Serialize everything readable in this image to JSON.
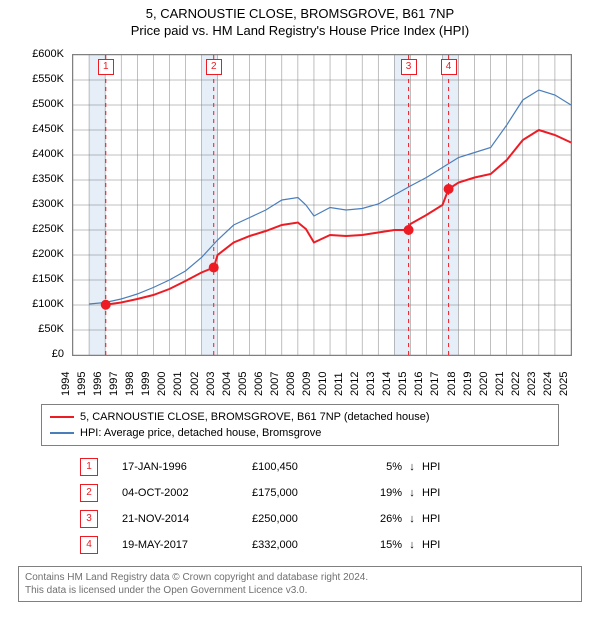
{
  "title": {
    "line1": "5, CARNOUSTIE CLOSE, BROMSGROVE, B61 7NP",
    "line2": "Price paid vs. HM Land Registry's House Price Index (HPI)",
    "fontsize": 13
  },
  "chart": {
    "type": "line",
    "background_color": "#ffffff",
    "grid_color": "#808080",
    "plot_border_color": "#808080",
    "band_color": "#e6eef7",
    "ylim": [
      0,
      600000
    ],
    "ytick_step": 50000,
    "y_prefix": "£",
    "y_suffix": "K",
    "y_divisor": 1000,
    "label_fontsize": 11,
    "x_years": [
      1994,
      1995,
      1996,
      1997,
      1998,
      1999,
      2000,
      2001,
      2002,
      2003,
      2004,
      2005,
      2006,
      2007,
      2008,
      2009,
      2010,
      2011,
      2012,
      2013,
      2014,
      2015,
      2016,
      2017,
      2018,
      2019,
      2020,
      2021,
      2022,
      2023,
      2024,
      2025
    ],
    "bands": [
      {
        "from": 1995,
        "to": 1996
      },
      {
        "from": 2002,
        "to": 2003
      },
      {
        "from": 2014,
        "to": 2015
      },
      {
        "from": 2017,
        "to": 2018
      }
    ],
    "series": [
      {
        "name": "property",
        "label": "5, CARNOUSTIE CLOSE, BROMSGROVE, B61 7NP (detached house)",
        "color": "#ed1c24",
        "line_width": 2,
        "points_xy": [
          [
            1996.0,
            100450
          ],
          [
            1997.0,
            105000
          ],
          [
            1998.0,
            112000
          ],
          [
            1999.0,
            120000
          ],
          [
            2000.0,
            132000
          ],
          [
            2001.0,
            148000
          ],
          [
            2002.0,
            165000
          ],
          [
            2002.76,
            175000
          ],
          [
            2003.0,
            200000
          ],
          [
            2004.0,
            225000
          ],
          [
            2005.0,
            238000
          ],
          [
            2006.0,
            248000
          ],
          [
            2007.0,
            260000
          ],
          [
            2008.0,
            265000
          ],
          [
            2008.5,
            252000
          ],
          [
            2009.0,
            225000
          ],
          [
            2010.0,
            240000
          ],
          [
            2011.0,
            238000
          ],
          [
            2012.0,
            240000
          ],
          [
            2013.0,
            245000
          ],
          [
            2014.0,
            250000
          ],
          [
            2014.89,
            250000
          ],
          [
            2015.0,
            262000
          ],
          [
            2016.0,
            280000
          ],
          [
            2017.0,
            300000
          ],
          [
            2017.38,
            332000
          ],
          [
            2018.0,
            345000
          ],
          [
            2019.0,
            355000
          ],
          [
            2020.0,
            362000
          ],
          [
            2021.0,
            390000
          ],
          [
            2022.0,
            430000
          ],
          [
            2023.0,
            450000
          ],
          [
            2024.0,
            440000
          ],
          [
            2025.0,
            425000
          ]
        ]
      },
      {
        "name": "hpi",
        "label": "HPI: Average price, detached house, Bromsgrove",
        "color": "#4a7ebb",
        "line_width": 1.2,
        "points_xy": [
          [
            1995.0,
            102000
          ],
          [
            1996.0,
            105000
          ],
          [
            1997.0,
            112000
          ],
          [
            1998.0,
            122000
          ],
          [
            1999.0,
            135000
          ],
          [
            2000.0,
            150000
          ],
          [
            2001.0,
            168000
          ],
          [
            2002.0,
            195000
          ],
          [
            2003.0,
            230000
          ],
          [
            2004.0,
            260000
          ],
          [
            2005.0,
            275000
          ],
          [
            2006.0,
            290000
          ],
          [
            2007.0,
            310000
          ],
          [
            2008.0,
            315000
          ],
          [
            2008.5,
            300000
          ],
          [
            2009.0,
            278000
          ],
          [
            2010.0,
            295000
          ],
          [
            2011.0,
            290000
          ],
          [
            2012.0,
            293000
          ],
          [
            2013.0,
            302000
          ],
          [
            2014.0,
            320000
          ],
          [
            2015.0,
            338000
          ],
          [
            2016.0,
            355000
          ],
          [
            2017.0,
            375000
          ],
          [
            2018.0,
            395000
          ],
          [
            2019.0,
            405000
          ],
          [
            2020.0,
            415000
          ],
          [
            2021.0,
            460000
          ],
          [
            2022.0,
            510000
          ],
          [
            2023.0,
            530000
          ],
          [
            2024.0,
            520000
          ],
          [
            2025.0,
            500000
          ]
        ]
      }
    ],
    "sale_markers": [
      {
        "num": "1",
        "x": 1996.04,
        "y": 100450
      },
      {
        "num": "2",
        "x": 2002.76,
        "y": 175000
      },
      {
        "num": "3",
        "x": 2014.89,
        "y": 250000
      },
      {
        "num": "4",
        "x": 2017.38,
        "y": 332000
      }
    ],
    "marker_fill": "#ed1c24",
    "marker_line_color": "#ed1c24",
    "marker_label_border": "#ed1c24",
    "marker_dash": "4 4",
    "marker_radius": 5
  },
  "legend": {
    "items": [
      {
        "color": "#ed1c24",
        "text": "5, CARNOUSTIE CLOSE, BROMSGROVE, B61 7NP (detached house)"
      },
      {
        "color": "#4a7ebb",
        "text": "HPI: Average price, detached house, Bromsgrove"
      }
    ]
  },
  "sales": [
    {
      "num": "1",
      "date": "17-JAN-1996",
      "price": "£100,450",
      "pct": "5%",
      "dir": "↓",
      "vs": "HPI"
    },
    {
      "num": "2",
      "date": "04-OCT-2002",
      "price": "£175,000",
      "pct": "19%",
      "dir": "↓",
      "vs": "HPI"
    },
    {
      "num": "3",
      "date": "21-NOV-2014",
      "price": "£250,000",
      "pct": "26%",
      "dir": "↓",
      "vs": "HPI"
    },
    {
      "num": "4",
      "date": "19-MAY-2017",
      "price": "£332,000",
      "pct": "15%",
      "dir": "↓",
      "vs": "HPI"
    }
  ],
  "footer": {
    "line1": "Contains HM Land Registry data © Crown copyright and database right 2024.",
    "line2": "This data is licensed under the Open Government Licence v3.0."
  }
}
